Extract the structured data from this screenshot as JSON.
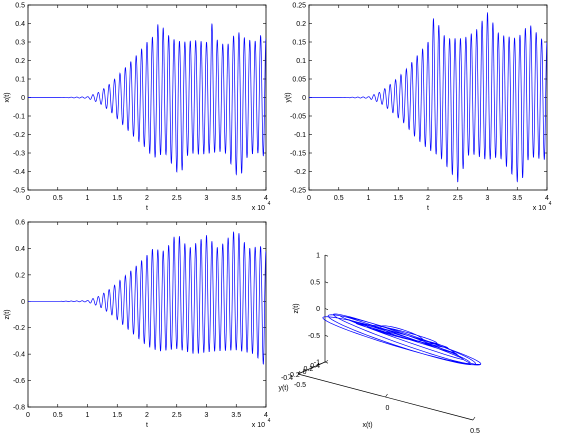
{
  "colors": {
    "line": "#0000ff",
    "axes": "#000000",
    "background": "#ffffff"
  },
  "chart_data": [
    {
      "type": "line",
      "xlabel": "t",
      "ylabel": "x(t)",
      "x_multiplier": "x 10",
      "x_multiplier_exp": "4",
      "xlim": [
        0,
        4
      ],
      "ylim": [
        -0.5,
        0.5
      ],
      "x_ticks": [
        "0",
        "0.5",
        "1",
        "1.5",
        "2",
        "2.5",
        "3",
        "3.5",
        "4"
      ],
      "y_ticks": [
        "0.5",
        "0.4",
        "0.3",
        "0.2",
        "0.1",
        "0",
        "-0.1",
        "-0.2",
        "-0.3",
        "-0.4",
        "-0.5"
      ],
      "signal": {
        "onset": 0.55,
        "bands": 80,
        "peak_cycles": 44
      },
      "series": [
        {
          "values": [
            {
              "x": 0.0,
              "y": 0.0
            },
            {
              "x": 0.5,
              "y": 0.0
            },
            {
              "x": 1.0,
              "y": 0.004
            },
            {
              "x": 1.2,
              "y": 0.03
            },
            {
              "x": 1.4,
              "y": 0.08
            },
            {
              "x": 1.6,
              "y": 0.15
            },
            {
              "x": 1.8,
              "y": 0.22
            },
            {
              "x": 2.0,
              "y": 0.3
            },
            {
              "x": 2.1,
              "y": 0.33
            },
            {
              "x": 2.2,
              "y": 0.41
            },
            {
              "x": 2.4,
              "y": 0.32
            },
            {
              "x": 2.6,
              "y": 0.3
            },
            {
              "x": 2.8,
              "y": 0.31
            },
            {
              "x": 3.0,
              "y": 0.3
            },
            {
              "x": 3.1,
              "y": 0.41
            },
            {
              "x": 3.2,
              "y": 0.29
            },
            {
              "x": 3.4,
              "y": 0.29
            },
            {
              "x": 3.5,
              "y": 0.37
            },
            {
              "x": 3.6,
              "y": 0.33
            },
            {
              "x": 3.8,
              "y": 0.3
            },
            {
              "x": 3.95,
              "y": 0.35
            },
            {
              "x": 4.0,
              "y": 0.32
            }
          ]
        }
      ],
      "lower": [
        {
          "x": 0.0,
          "y": 0.0
        },
        {
          "x": 0.5,
          "y": 0.0
        },
        {
          "x": 1.0,
          "y": -0.004
        },
        {
          "x": 1.2,
          "y": -0.03
        },
        {
          "x": 1.4,
          "y": -0.08
        },
        {
          "x": 1.6,
          "y": -0.15
        },
        {
          "x": 1.8,
          "y": -0.22
        },
        {
          "x": 2.0,
          "y": -0.28
        },
        {
          "x": 2.1,
          "y": -0.33
        },
        {
          "x": 2.3,
          "y": -0.3
        },
        {
          "x": 2.55,
          "y": -0.43
        },
        {
          "x": 2.7,
          "y": -0.3
        },
        {
          "x": 2.9,
          "y": -0.31
        },
        {
          "x": 3.1,
          "y": -0.3
        },
        {
          "x": 3.3,
          "y": -0.29
        },
        {
          "x": 3.55,
          "y": -0.45
        },
        {
          "x": 3.7,
          "y": -0.31
        },
        {
          "x": 3.9,
          "y": -0.3
        },
        {
          "x": 4.0,
          "y": -0.33
        }
      ]
    },
    {
      "type": "line",
      "xlabel": "t",
      "ylabel": "y(t)",
      "x_multiplier": "x 10",
      "x_multiplier_exp": "4",
      "xlim": [
        0,
        4
      ],
      "ylim": [
        -0.25,
        0.25
      ],
      "x_ticks": [
        "0",
        "0.5",
        "1",
        "1.5",
        "2",
        "2.5",
        "3",
        "3.5",
        "4"
      ],
      "y_ticks": [
        "0.25",
        "0.2",
        "0.15",
        "0.1",
        "0.05",
        "0",
        "-0.05",
        "-0.1",
        "-0.15",
        "-0.2",
        "-0.25"
      ],
      "signal": {
        "onset": 0.55,
        "bands": 80,
        "peak_cycles": 44
      },
      "series": [
        {
          "values": [
            {
              "x": 0.0,
              "y": 0.0
            },
            {
              "x": 0.5,
              "y": 0.0
            },
            {
              "x": 1.0,
              "y": 0.002
            },
            {
              "x": 1.2,
              "y": 0.015
            },
            {
              "x": 1.4,
              "y": 0.04
            },
            {
              "x": 1.6,
              "y": 0.07
            },
            {
              "x": 1.8,
              "y": 0.11
            },
            {
              "x": 2.0,
              "y": 0.15
            },
            {
              "x": 2.1,
              "y": 0.22
            },
            {
              "x": 2.3,
              "y": 0.16
            },
            {
              "x": 2.6,
              "y": 0.16
            },
            {
              "x": 2.8,
              "y": 0.18
            },
            {
              "x": 3.0,
              "y": 0.23
            },
            {
              "x": 3.2,
              "y": 0.17
            },
            {
              "x": 3.5,
              "y": 0.16
            },
            {
              "x": 3.7,
              "y": 0.2
            },
            {
              "x": 3.9,
              "y": 0.16
            },
            {
              "x": 4.0,
              "y": 0.15
            }
          ]
        }
      ],
      "lower": [
        {
          "x": 0.0,
          "y": 0.0
        },
        {
          "x": 0.5,
          "y": 0.0
        },
        {
          "x": 1.0,
          "y": -0.002
        },
        {
          "x": 1.2,
          "y": -0.015
        },
        {
          "x": 1.4,
          "y": -0.04
        },
        {
          "x": 1.6,
          "y": -0.07
        },
        {
          "x": 1.8,
          "y": -0.11
        },
        {
          "x": 2.0,
          "y": -0.14
        },
        {
          "x": 2.2,
          "y": -0.16
        },
        {
          "x": 2.5,
          "y": -0.23
        },
        {
          "x": 2.7,
          "y": -0.15
        },
        {
          "x": 3.0,
          "y": -0.17
        },
        {
          "x": 3.2,
          "y": -0.16
        },
        {
          "x": 3.55,
          "y": -0.24
        },
        {
          "x": 3.7,
          "y": -0.16
        },
        {
          "x": 4.0,
          "y": -0.17
        }
      ]
    },
    {
      "type": "line",
      "xlabel": "t",
      "ylabel": "z(t)",
      "x_multiplier": "x 10",
      "x_multiplier_exp": "4",
      "xlim": [
        0,
        4
      ],
      "ylim": [
        -0.8,
        0.6
      ],
      "x_ticks": [
        "0",
        "0.5",
        "1",
        "1.5",
        "2",
        "2.5",
        "3",
        "3.5",
        "4"
      ],
      "y_ticks": [
        "0.6",
        "0.4",
        "0.2",
        "0",
        "-0.2",
        "-0.4",
        "-0.6",
        "-0.8"
      ],
      "signal": {
        "onset": 0.55,
        "bands": 80,
        "peak_cycles": 44
      },
      "series": [
        {
          "values": [
            {
              "x": 0.0,
              "y": 0.0
            },
            {
              "x": 0.5,
              "y": 0.0
            },
            {
              "x": 1.0,
              "y": 0.005
            },
            {
              "x": 1.2,
              "y": 0.04
            },
            {
              "x": 1.4,
              "y": 0.1
            },
            {
              "x": 1.6,
              "y": 0.18
            },
            {
              "x": 1.8,
              "y": 0.26
            },
            {
              "x": 2.0,
              "y": 0.35
            },
            {
              "x": 2.1,
              "y": 0.4
            },
            {
              "x": 2.3,
              "y": 0.38
            },
            {
              "x": 2.5,
              "y": 0.52
            },
            {
              "x": 2.7,
              "y": 0.4
            },
            {
              "x": 3.0,
              "y": 0.5
            },
            {
              "x": 3.2,
              "y": 0.4
            },
            {
              "x": 3.5,
              "y": 0.55
            },
            {
              "x": 3.7,
              "y": 0.4
            },
            {
              "x": 3.9,
              "y": 0.42
            },
            {
              "x": 4.0,
              "y": 0.38
            }
          ]
        }
      ],
      "lower": [
        {
          "x": 0.0,
          "y": 0.0
        },
        {
          "x": 0.5,
          "y": 0.0
        },
        {
          "x": 1.0,
          "y": -0.005
        },
        {
          "x": 1.2,
          "y": -0.04
        },
        {
          "x": 1.4,
          "y": -0.1
        },
        {
          "x": 1.6,
          "y": -0.18
        },
        {
          "x": 1.8,
          "y": -0.26
        },
        {
          "x": 2.0,
          "y": -0.34
        },
        {
          "x": 2.2,
          "y": -0.38
        },
        {
          "x": 2.5,
          "y": -0.36
        },
        {
          "x": 2.8,
          "y": -0.4
        },
        {
          "x": 3.1,
          "y": -0.38
        },
        {
          "x": 3.5,
          "y": -0.37
        },
        {
          "x": 3.8,
          "y": -0.4
        },
        {
          "x": 4.0,
          "y": -0.5
        }
      ]
    },
    {
      "type": "line",
      "subtype": "3d-trajectory",
      "xlabel": "x(t)",
      "ylabel": "y(t)",
      "zlabel": "z(t)",
      "xlim": [
        -0.5,
        0.5
      ],
      "ylim": [
        -0.4,
        0.4
      ],
      "zlim": [
        -1,
        1
      ],
      "x_ticks": [
        "-0.5",
        "0",
        "0.5"
      ],
      "y_ticks": [
        "0.4",
        "0.2",
        "0",
        "-0.2",
        "-0.4"
      ],
      "z_ticks": [
        "1",
        "0.5",
        "0",
        "-0.5",
        "-1"
      ],
      "orbits": [
        {
          "rx": 0.12,
          "ry": 0.05,
          "cz": 0.1
        },
        {
          "rx": 0.2,
          "ry": 0.08,
          "cz": 0.08
        },
        {
          "rx": 0.26,
          "ry": 0.11,
          "cz": 0.06
        },
        {
          "rx": 0.31,
          "ry": 0.13,
          "cz": 0.04
        },
        {
          "rx": 0.35,
          "ry": 0.15,
          "cz": 0.02
        },
        {
          "rx": 0.39,
          "ry": 0.17,
          "cz": 0.0
        },
        {
          "rx": 0.42,
          "ry": 0.19,
          "cz": -0.02
        },
        {
          "rx": 0.45,
          "ry": 0.2,
          "cz": -0.04
        }
      ]
    }
  ]
}
